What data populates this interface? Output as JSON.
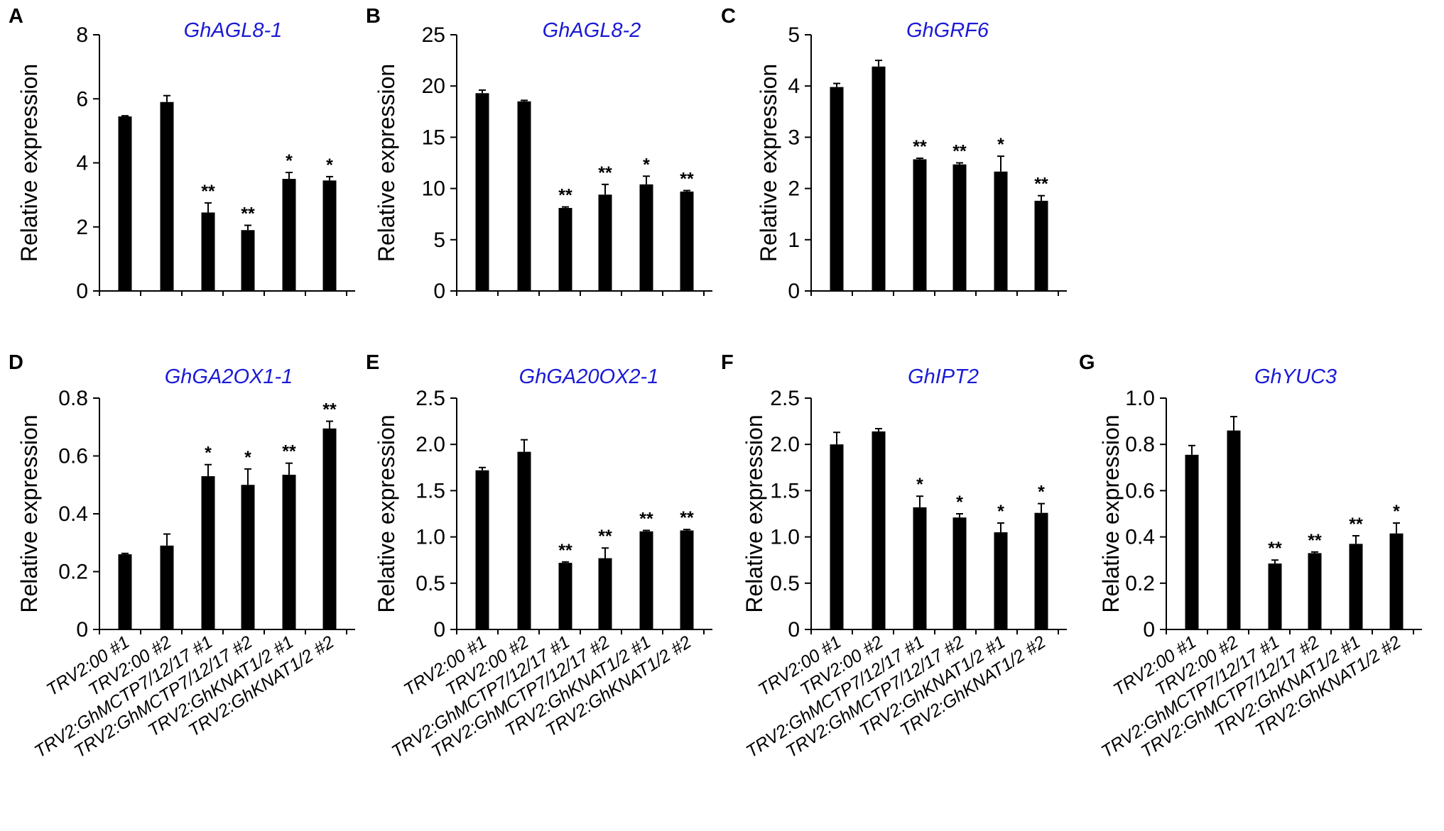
{
  "colors": {
    "bar": "#000000",
    "title": "#1a1ad6",
    "axis": "#000000"
  },
  "chart_data": [
    {
      "panel": "A",
      "type": "bar",
      "title": "GhAGL8-1",
      "ylabel": "Relative expression",
      "ylim": [
        0,
        8
      ],
      "yticks": [
        "0",
        "2",
        "4",
        "6",
        "8"
      ],
      "values": [
        5.45,
        5.9,
        2.45,
        1.9,
        3.5,
        3.45
      ],
      "errors": [
        0.02,
        0.2,
        0.3,
        0.15,
        0.2,
        0.12
      ],
      "significance": [
        "",
        "",
        "**",
        "**",
        "*",
        "*"
      ]
    },
    {
      "panel": "B",
      "type": "bar",
      "title": "GhAGL8-2",
      "ylabel": "Relative expression",
      "ylim": [
        0,
        25
      ],
      "yticks": [
        "0",
        "5",
        "10",
        "15",
        "20",
        "25"
      ],
      "values": [
        19.3,
        18.5,
        8.1,
        9.4,
        10.4,
        9.7
      ],
      "errors": [
        0.3,
        0.1,
        0.1,
        1.0,
        0.8,
        0.1
      ],
      "significance": [
        "",
        "",
        "**",
        "**",
        "*",
        "**"
      ]
    },
    {
      "panel": "C",
      "type": "bar",
      "title": "GhGRF6",
      "ylabel": "Relative expression",
      "ylim": [
        0,
        5
      ],
      "yticks": [
        "0",
        "1",
        "2",
        "3",
        "4",
        "5"
      ],
      "values": [
        3.98,
        4.38,
        2.57,
        2.47,
        2.33,
        1.76
      ],
      "errors": [
        0.07,
        0.12,
        0.02,
        0.03,
        0.3,
        0.1
      ],
      "significance": [
        "",
        "",
        "**",
        "**",
        "*",
        "**"
      ]
    },
    {
      "panel": "D",
      "type": "bar",
      "title": "GhGA2OX1-1",
      "ylabel": "Relative expression",
      "ylim": [
        0,
        0.8
      ],
      "yticks": [
        "0",
        "0.2",
        "0.4",
        "0.6",
        "0.8"
      ],
      "values": [
        0.26,
        0.29,
        0.53,
        0.5,
        0.535,
        0.695
      ],
      "errors": [
        0.003,
        0.04,
        0.04,
        0.055,
        0.04,
        0.025
      ],
      "significance": [
        "",
        "",
        "*",
        "*",
        "**",
        "**"
      ]
    },
    {
      "panel": "E",
      "type": "bar",
      "title": "GhGA20OX2-1",
      "ylabel": "Relative expression",
      "ylim": [
        0,
        2.5
      ],
      "yticks": [
        "0",
        "0.5",
        "1.0",
        "1.5",
        "2.0",
        "2.5"
      ],
      "values": [
        1.72,
        1.92,
        0.72,
        0.77,
        1.06,
        1.07
      ],
      "errors": [
        0.03,
        0.13,
        0.01,
        0.11,
        0.01,
        0.01
      ],
      "significance": [
        "",
        "",
        "**",
        "**",
        "**",
        "**"
      ]
    },
    {
      "panel": "F",
      "type": "bar",
      "title": "GhIPT2",
      "ylabel": "Relative expression",
      "ylim": [
        0,
        2.5
      ],
      "yticks": [
        "0",
        "0.5",
        "1.0",
        "1.5",
        "2.0",
        "2.5"
      ],
      "values": [
        2.0,
        2.14,
        1.32,
        1.21,
        1.05,
        1.26
      ],
      "errors": [
        0.13,
        0.03,
        0.12,
        0.04,
        0.1,
        0.1
      ],
      "significance": [
        "",
        "",
        "*",
        "*",
        "*",
        "*"
      ]
    },
    {
      "panel": "G",
      "type": "bar",
      "title": "GhYUC3",
      "ylabel": "Relative expression",
      "ylim": [
        0,
        1.0
      ],
      "yticks": [
        "0",
        "0.2",
        "0.4",
        "0.6",
        "0.8",
        "1.0"
      ],
      "values": [
        0.755,
        0.86,
        0.285,
        0.33,
        0.37,
        0.415
      ],
      "errors": [
        0.04,
        0.06,
        0.015,
        0.005,
        0.035,
        0.045
      ],
      "significance": [
        "",
        "",
        "**",
        "**",
        "**",
        "*"
      ]
    }
  ],
  "categories": [
    "TRV2:00 #1",
    "TRV2:00 #2",
    "TRV2:GhMCTP7/12/17 #1",
    "TRV2:GhMCTP7/12/17 #2",
    "TRV2:GhKNAT1/2 #1",
    "TRV2:GhKNAT1/2 #2"
  ]
}
